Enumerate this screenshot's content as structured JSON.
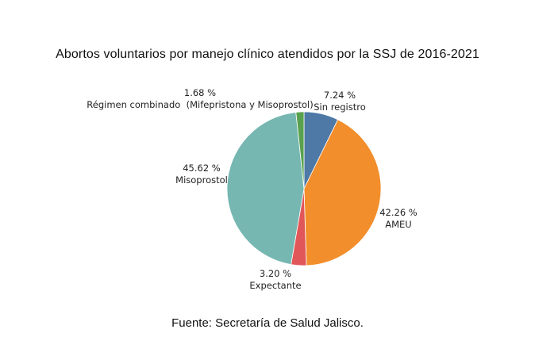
{
  "chart_data": {
    "type": "pie",
    "title": "Abortos voluntarios por manejo clínico atendidos por la SSJ de 2016-2021",
    "slices": [
      {
        "name": "Sin registro",
        "value": 7.24,
        "label": "7.24 %",
        "color": "#4e79a7"
      },
      {
        "name": "AMEU",
        "value": 42.26,
        "label": "42.26 %",
        "color": "#f28e2b"
      },
      {
        "name": "Expectante",
        "value": 3.2,
        "label": "3.20 %",
        "color": "#e15759"
      },
      {
        "name": "Misoprostol",
        "value": 45.62,
        "label": "45.62 %",
        "color": "#76b7b2"
      },
      {
        "name": "Régimen combinado  (Mifepristona y Misoprostol)",
        "value": 1.68,
        "label": "1.68 %",
        "color": "#59a14f"
      }
    ],
    "start": "12 o'clock",
    "direction": "clockwise"
  },
  "source": "Fuente: Secretaría de Salud Jalisco."
}
